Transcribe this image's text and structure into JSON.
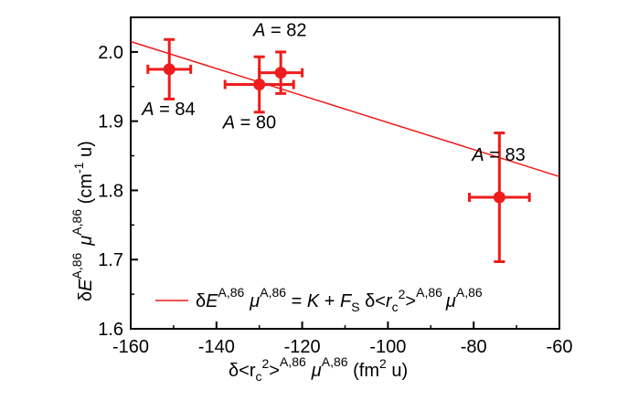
{
  "chart_data": {
    "type": "scatter",
    "colors": {
      "series": "#ee1c1c",
      "axis": "#000000"
    },
    "x_axis": {
      "range": [
        -160,
        -60
      ],
      "ticks": [
        -160,
        -140,
        -120,
        -100,
        -80,
        -60
      ],
      "tick_labels": [
        "-160",
        "-140",
        "-120",
        "-100",
        "-80",
        "-60"
      ]
    },
    "y_axis": {
      "range": [
        1.6,
        2.05
      ],
      "ticks": [
        1.6,
        1.7,
        1.8,
        1.9,
        2.0
      ],
      "tick_labels": [
        "1.6",
        "1.7",
        "1.8",
        "1.9",
        "2.0"
      ]
    },
    "xlabel": {
      "parts": [
        "δ<r",
        "c",
        "2",
        ">",
        "A,86",
        "μ",
        "A,86",
        " (fm",
        "2",
        " u)"
      ]
    },
    "ylabel": {
      "parts": [
        "δ",
        "E",
        "A,86",
        "μ",
        "A,86",
        " (cm",
        "-1",
        " u)"
      ]
    },
    "points": [
      {
        "label": "A = 84",
        "label_italic": "A",
        "label_rest": " = 84",
        "x": -151,
        "y": 1.975,
        "xerr": 5,
        "yerr": 0.043
      },
      {
        "label": "A = 80",
        "label_italic": "A",
        "label_rest": " = 80",
        "x": -130,
        "y": 1.953,
        "xerr": 8,
        "yerr": 0.04
      },
      {
        "label": "A = 82",
        "label_italic": "A",
        "label_rest": " = 82",
        "x": -125,
        "y": 1.97,
        "xerr": 5,
        "yerr": 0.03
      },
      {
        "label": "A = 83",
        "label_italic": "A",
        "label_rest": " = 83",
        "x": -74,
        "y": 1.79,
        "xerr": 7,
        "yerr": 0.093
      }
    ],
    "fit_line": {
      "x": [
        -160,
        -60
      ],
      "y": [
        2.015,
        1.82
      ]
    },
    "legend": {
      "position": "bottom",
      "parts": [
        "δ",
        "E",
        "A,86",
        "μ",
        "A,86",
        " = ",
        "K",
        " + ",
        "F",
        "S",
        " δ<",
        "r",
        "c",
        "2",
        ">",
        "A,86",
        "μ",
        "A,86"
      ]
    }
  }
}
